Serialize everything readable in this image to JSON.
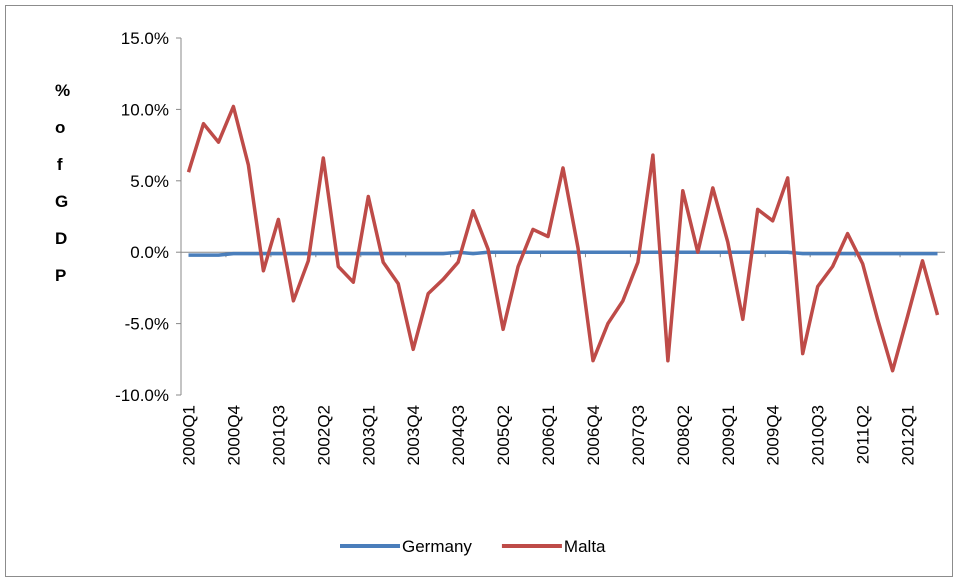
{
  "chart_data": {
    "type": "line",
    "y_label": "% of GDP",
    "categories": [
      "2000Q1",
      null,
      null,
      "2000Q4",
      null,
      null,
      "2001Q3",
      null,
      null,
      "2002Q2",
      null,
      null,
      "2003Q1",
      null,
      null,
      "2003Q4",
      null,
      null,
      "2004Q3",
      null,
      null,
      "2005Q2",
      null,
      null,
      "2006Q1",
      null,
      null,
      "2006Q4",
      null,
      null,
      "2007Q3",
      null,
      null,
      "2008Q2",
      null,
      null,
      "2009Q1",
      null,
      null,
      "2009Q4",
      null,
      null,
      "2010Q3",
      null,
      null,
      "2011Q2",
      null,
      null,
      "2012Q1",
      null,
      null
    ],
    "series": [
      {
        "name": "Germany",
        "color": "#4a7ebb",
        "values": [
          -0.2,
          -0.2,
          -0.2,
          -0.1,
          -0.1,
          -0.1,
          -0.1,
          -0.1,
          -0.1,
          -0.1,
          -0.1,
          -0.1,
          -0.1,
          -0.1,
          -0.1,
          -0.1,
          -0.1,
          -0.1,
          0.0,
          -0.1,
          0.0,
          0.0,
          0.0,
          0.0,
          0.0,
          0.0,
          0.0,
          0.0,
          0.0,
          0.0,
          0.0,
          0.0,
          0.0,
          0.0,
          0.0,
          0.0,
          0.0,
          0.0,
          0.0,
          0.0,
          0.0,
          -0.1,
          -0.1,
          -0.1,
          -0.1,
          -0.1,
          -0.1,
          -0.1,
          -0.1,
          -0.1,
          -0.1
        ]
      },
      {
        "name": "Malta",
        "color": "#be4b48",
        "values": [
          5.6,
          9.0,
          7.7,
          10.2,
          6.1,
          -1.3,
          2.3,
          -3.4,
          -0.6,
          6.6,
          -1.0,
          -2.1,
          3.9,
          -0.7,
          -2.2,
          -6.8,
          -2.9,
          -1.9,
          -0.7,
          2.9,
          0.2,
          -5.4,
          -1.0,
          1.6,
          1.1,
          5.9,
          0.3,
          -7.6,
          -5.0,
          -3.4,
          -0.7,
          6.8,
          -7.6,
          4.3,
          0.0,
          4.5,
          0.7,
          -4.7,
          3.0,
          2.2,
          5.2,
          -7.1,
          -2.4,
          -1.0,
          1.3,
          -0.8,
          -4.7,
          -8.3,
          -4.5,
          -0.6,
          -4.4
        ]
      }
    ],
    "ylim": [
      -10,
      15
    ],
    "yticks": [
      {
        "value": -10,
        "label": "-10.0%"
      },
      {
        "value": -5,
        "label": "-5.0%"
      },
      {
        "value": 0,
        "label": "0.0%"
      },
      {
        "value": 5,
        "label": "5.0%"
      },
      {
        "value": 10,
        "label": "10.0%"
      },
      {
        "value": 15,
        "label": "15.0%"
      }
    ],
    "legend": "bottom"
  }
}
